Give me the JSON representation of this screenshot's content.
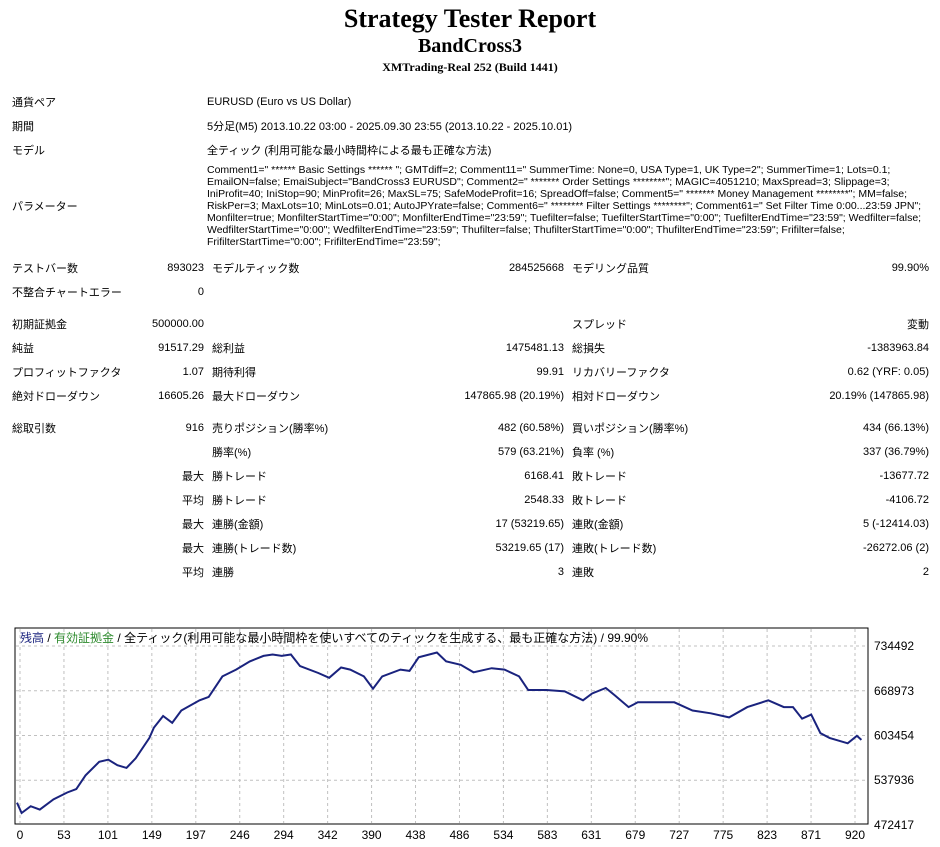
{
  "header": {
    "title": "Strategy Tester Report",
    "expert": "BandCross3",
    "server": "XMTrading-Real 252 (Build 1441)"
  },
  "info": [
    {
      "label": "通貨ペア",
      "value": "EURUSD (Euro vs US Dollar)"
    },
    {
      "label": "期間",
      "value": "5分足(M5) 2013.10.22 03:00 - 2025.09.30 23:55 (2013.10.22 - 2025.10.01)"
    },
    {
      "label": "モデル",
      "value": "全ティック (利用可能な最小時間枠による最も正確な方法)"
    },
    {
      "label": "パラメーター",
      "value": "Comment1=\" ****** Basic Settings ****** \"; GMTdiff=2; Comment11=\" SummerTime: None=0, USA Type=1, UK Type=2\"; SummerTime=1; Lots=0.1; EmailON=false; EmaiSubject=\"BandCross3 EURUSD\"; Comment2=\" ******* Order Settings ********\"; MAGIC=4051210; MaxSpread=3; Slippage=3; IniProfit=40; IniStop=90; MinProfit=26; MaxSL=75; SafeModeProfit=16; SpreadOff=false; Comment5=\" ******* Money Management ********\"; MM=false; RiskPer=3; MaxLots=10; MinLots=0.01; AutoJPYrate=false; Comment6=\" ******** Filter Settings ********\"; Comment61=\" Set Filter Time 0:00...23:59 JPN\"; Monfilter=true; MonfilterStartTime=\"0:00\"; MonfilterEndTime=\"23:59\"; Tuefilter=false; TuefilterStartTime=\"0:00\"; TuefilterEndTime=\"23:59\"; Wedfilter=false; WedfilterStartTime=\"0:00\"; WedfilterEndTime=\"23:59\"; Thufilter=false; ThufilterStartTime=\"0:00\"; ThufilterEndTime=\"23:59\"; Frifilter=false; FrifilterStartTime=\"0:00\"; FrifilterEndTime=\"23:59\";"
    }
  ],
  "stats": {
    "bars_label": "テストバー数",
    "bars": "893023",
    "ticks_label": "モデルティック数",
    "ticks": "284525668",
    "quality_label": "モデリング品質",
    "quality": "99.90%",
    "mismatch_label": "不整合チャートエラー",
    "mismatch": "0",
    "deposit_label": "初期証拠金",
    "deposit": "500000.00",
    "spread_label": "スプレッド",
    "spread": "変動",
    "net_label": "純益",
    "net": "91517.29",
    "gross_profit_label": "総利益",
    "gross_profit": "1475481.13",
    "gross_loss_label": "総損失",
    "gross_loss": "-1383963.84",
    "pf_label": "プロフィットファクタ",
    "pf": "1.07",
    "expected_label": "期待利得",
    "expected": "99.91",
    "recovery_label": "リカバリーファクタ",
    "recovery": "0.62 (YRF: 0.05)",
    "abs_dd_label": "絶対ドローダウン",
    "abs_dd": "16605.26",
    "max_dd_label": "最大ドローダウン",
    "max_dd": "147865.98 (20.19%)",
    "rel_dd_label": "相対ドローダウン",
    "rel_dd": "20.19% (147865.98)",
    "trades_label": "総取引数",
    "trades": "916",
    "short_label": "売りポジション(勝率%)",
    "short": "482 (60.58%)",
    "long_label": "買いポジション(勝率%)",
    "long": "434 (66.13%)",
    "win_label": "勝率(%)",
    "win": "579 (63.21%)",
    "loss_label": "負率 (%)",
    "loss": "337 (36.79%)",
    "max_label": "最大",
    "avg_label": "平均",
    "largest_win_label": "勝トレード",
    "largest_win": "6168.41",
    "largest_loss_label": "敗トレード",
    "largest_loss": "-13677.72",
    "avg_win_label": "勝トレード",
    "avg_win": "2548.33",
    "avg_loss_label": "敗トレード",
    "avg_loss": "-4106.72",
    "cons_win_amt_label": "連勝(金額)",
    "cons_win_amt": "17 (53219.65)",
    "cons_loss_amt_label": "連敗(金額)",
    "cons_loss_amt": "5 (-12414.03)",
    "cons_win_cnt_label": "連勝(トレード数)",
    "cons_win_cnt": "53219.65 (17)",
    "cons_loss_cnt_label": "連敗(トレード数)",
    "cons_loss_cnt": "-26272.06 (2)",
    "avg_cons_win_label": "連勝",
    "avg_cons_win": "3",
    "avg_cons_loss_label": "連敗",
    "avg_cons_loss": "2"
  },
  "chart_data": {
    "type": "line",
    "legend": {
      "balance": "残高",
      "equity": "有効証拠金",
      "sep": " / ",
      "model": "全ティック(利用可能な最小時間枠を使いすべてのティックを生成する、最も正確な方法)",
      "quality": "99.90%"
    },
    "colors": {
      "balance": "#1a237e",
      "equity": "#2e8b2e",
      "grid": "#c0c0c0"
    },
    "grid": true,
    "xlim": [
      0,
      930
    ],
    "ylim": [
      472417,
      734492
    ],
    "xticks": [
      0,
      53,
      101,
      149,
      197,
      246,
      294,
      342,
      390,
      438,
      486,
      534,
      583,
      631,
      679,
      727,
      775,
      823,
      871,
      920
    ],
    "yticks": [
      734492,
      668973,
      603454,
      537936,
      472417
    ],
    "series": [
      {
        "x": [
          0,
          5,
          15,
          25,
          40,
          55,
          65,
          75,
          90,
          100,
          110,
          120,
          130,
          145,
          150,
          160,
          170,
          180,
          200,
          210,
          225,
          240,
          255,
          270,
          280,
          290,
          300,
          310,
          330,
          342,
          355,
          365,
          380,
          390,
          400,
          420,
          430,
          440,
          460,
          470,
          486,
          500,
          520,
          534,
          550,
          560,
          580,
          600,
          620,
          630,
          645,
          655,
          670,
          680,
          700,
          720,
          740,
          760,
          780,
          800,
          823,
          840,
          850,
          860,
          870,
          880,
          890,
          910,
          920,
          925
        ],
        "y": [
          505000,
          490000,
          500000,
          495000,
          510000,
          520000,
          525000,
          545000,
          565000,
          568000,
          560000,
          556000,
          570000,
          600000,
          615000,
          632000,
          622000,
          640000,
          655000,
          660000,
          690000,
          700000,
          712000,
          720000,
          722000,
          720000,
          722000,
          705000,
          695000,
          688000,
          703000,
          700000,
          690000,
          672000,
          690000,
          700000,
          698000,
          718000,
          725000,
          712000,
          707000,
          696000,
          702000,
          700000,
          690000,
          670000,
          670000,
          668000,
          655000,
          665000,
          673000,
          662000,
          645000,
          652000,
          652000,
          652000,
          640000,
          636000,
          630000,
          645000,
          655000,
          645000,
          645000,
          628000,
          634000,
          607000,
          600000,
          592000,
          603000,
          597000
        ]
      }
    ]
  }
}
